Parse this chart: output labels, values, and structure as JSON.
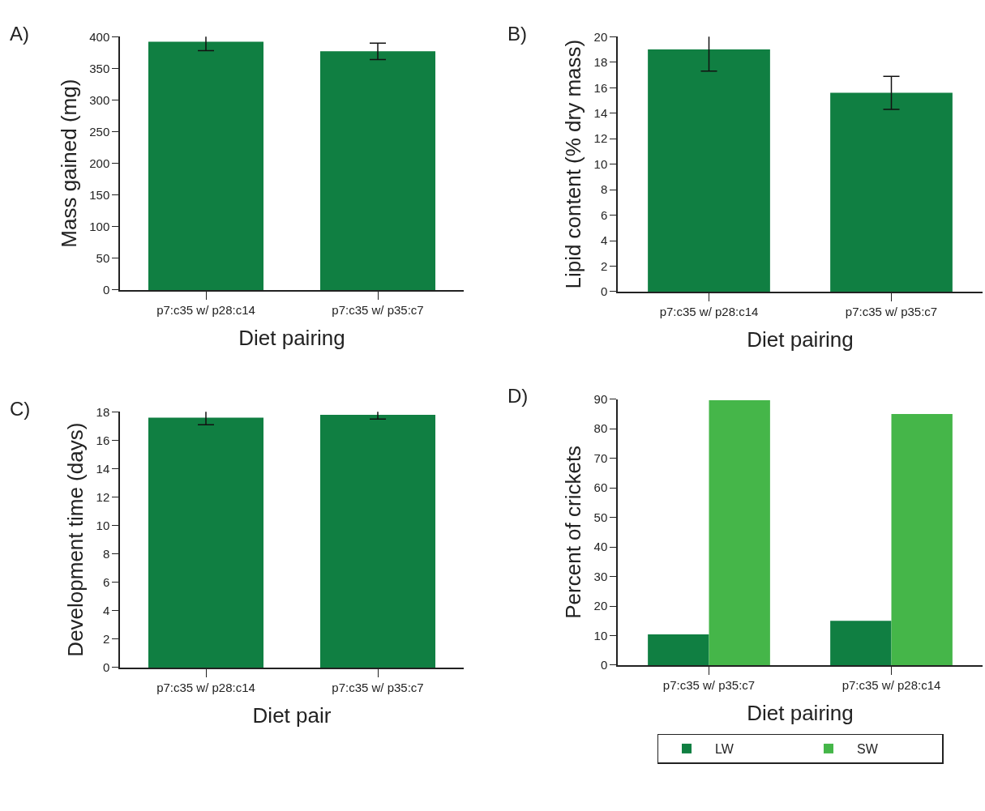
{
  "chart_data": [
    {
      "type": "bar",
      "title": "A)",
      "xlabel": "Diet pairing",
      "ylabel": "Mass gained (mg)",
      "categories": [
        "p7:c35 w/ p28:c14",
        "p7:c35 w/ p35:c7"
      ],
      "values": [
        392,
        377
      ],
      "errors": [
        14,
        13
      ],
      "color": "#107f42",
      "ylim": [
        0,
        400
      ],
      "yticks": [
        0,
        50,
        100,
        150,
        200,
        250,
        300,
        350,
        400
      ]
    },
    {
      "type": "bar",
      "title": "B)",
      "xlabel": "Diet pairing",
      "ylabel": "Lipid content (% dry mass)",
      "categories": [
        "p7:c35 w/ p28:c14",
        "p7:c35 w/ p35:c7"
      ],
      "values": [
        19.0,
        15.6
      ],
      "errors": [
        1.7,
        1.3
      ],
      "color": "#107f42",
      "ylim": [
        0,
        20
      ],
      "yticks": [
        0,
        2,
        4,
        6,
        8,
        10,
        12,
        14,
        16,
        18,
        20
      ]
    },
    {
      "type": "bar",
      "title": "C)",
      "xlabel": "Diet pair",
      "ylabel": "Development time (days)",
      "categories": [
        "p7:c35 w/ p28:c14",
        "p7:c35 w/ p35:c7"
      ],
      "values": [
        17.6,
        17.8
      ],
      "errors": [
        0.5,
        0.3
      ],
      "color": "#107f42",
      "ylim": [
        0,
        18
      ],
      "yticks": [
        0,
        2,
        4,
        6,
        8,
        10,
        12,
        14,
        16,
        18
      ]
    },
    {
      "type": "bar",
      "title": "D)",
      "xlabel": "Diet pairing",
      "ylabel": "Percent of crickets",
      "categories": [
        "p7:c35 w/ p35:c7",
        "p7:c35 w/ p28:c14"
      ],
      "series": [
        {
          "name": "LW",
          "color": "#107f42",
          "values": [
            10.4,
            15
          ]
        },
        {
          "name": "SW",
          "color": "#45b649",
          "values": [
            89.6,
            85
          ]
        }
      ],
      "ylim": [
        0,
        90
      ],
      "yticks": [
        0,
        10,
        20,
        30,
        40,
        50,
        60,
        70,
        80,
        90
      ],
      "legend": "bottom"
    }
  ]
}
